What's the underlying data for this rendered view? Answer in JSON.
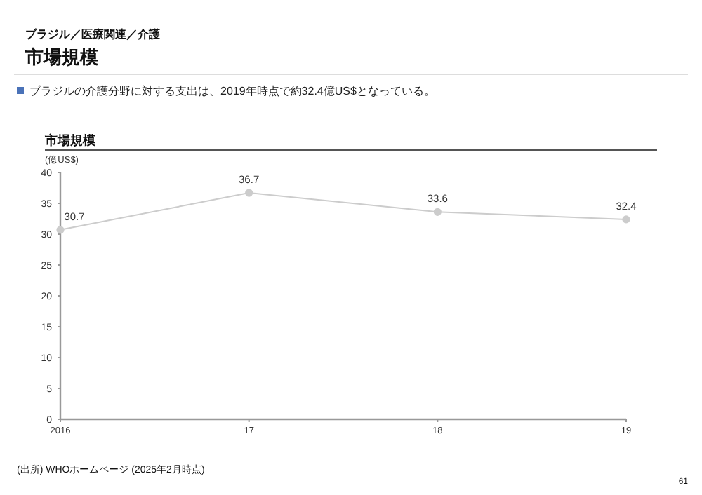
{
  "chart_data": {
    "type": "line",
    "title": "市場規模",
    "subtitle": "ブラジルの介護分野に対する支出は、2019年時点で約32.4億US$となっている。",
    "ylabel": "(億US$)",
    "annotations": [
      "ブラジル／医療関連／介護",
      "市場規模",
      "(出所) WHOホームページ (2025年2月時点)",
      "61"
    ],
    "categories": [
      "2016",
      "17",
      "18",
      "19"
    ],
    "series": [
      {
        "color": "#cccccc",
        "values": [
          30.7,
          36.7,
          33.6,
          32.4
        ]
      }
    ],
    "ylim": [
      0,
      40
    ],
    "yticks": [
      0,
      5,
      10,
      15,
      20,
      25,
      30,
      35,
      40
    ],
    "marker": "circle",
    "data_labels": true,
    "grid": false
  }
}
